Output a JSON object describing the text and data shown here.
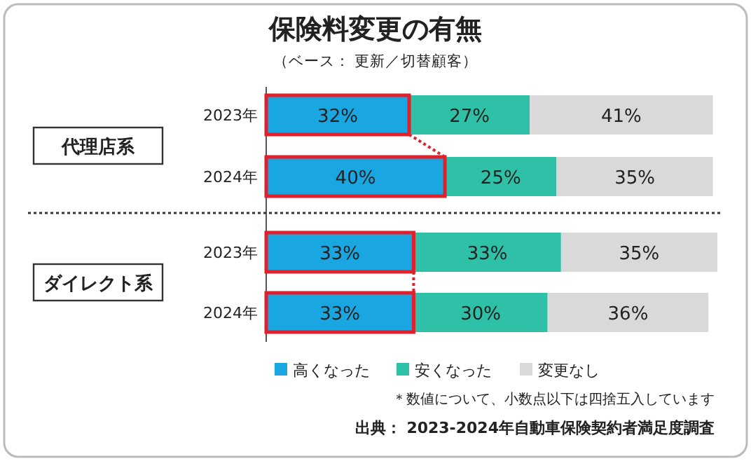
{
  "chart_data": {
    "type": "bar",
    "orientation": "horizontal",
    "stacked": true,
    "legend": "bottom",
    "title": "保険料変更の有無",
    "subtitle": "（ベース： 更新／切替顧客）",
    "categories": [
      "2023年",
      "2024年",
      "2023年",
      "2024年"
    ],
    "series": [
      {
        "name": "高くなった",
        "color": "#1aa7e1",
        "values": [
          32,
          40,
          33,
          33
        ],
        "value_labels": [
          "32%",
          "40%",
          "33%",
          "33%"
        ]
      },
      {
        "name": "安くなった",
        "color": "#2ec1a7",
        "values": [
          27,
          25,
          33,
          30
        ],
        "value_labels": [
          "27%",
          "25%",
          "33%",
          "30%"
        ]
      },
      {
        "name": "変更なし",
        "color": "#d9d9d9",
        "values": [
          41,
          35,
          35,
          36
        ],
        "value_labels": [
          "41%",
          "35%",
          "35%",
          "36%"
        ]
      }
    ],
    "annotations": [
      "代理店系",
      "ダイレクト系",
      "＊数値について、小数点以下は四捨五入しています",
      "出典： 2023-2024年自動車保険契約者満足度調査"
    ]
  }
}
